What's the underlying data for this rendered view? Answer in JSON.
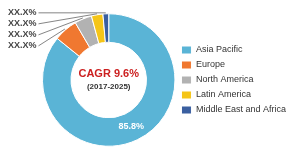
{
  "chart_data": {
    "type": "doughnut",
    "annotations": [
      {
        "text": "CAGR 9.6%",
        "color": "#cc2020"
      },
      {
        "text": "(2017-2025)",
        "color": "#333333"
      }
    ],
    "categories": [
      "Asia Pacific",
      "Europe",
      "North America",
      "Latin America",
      "Middle East and Africa"
    ],
    "values": [
      85.8,
      5.8,
      4.2,
      2.8,
      1.4
    ],
    "value_labels": [
      "85.8%",
      "XX.X%",
      "XX.X%",
      "XX.X%",
      "XX.X%"
    ],
    "data_labels": true,
    "colors": [
      "#5ab4d6",
      "#f07830",
      "#b2b2b2",
      "#f5c518",
      "#3a5fa0"
    ],
    "legend": "right"
  }
}
